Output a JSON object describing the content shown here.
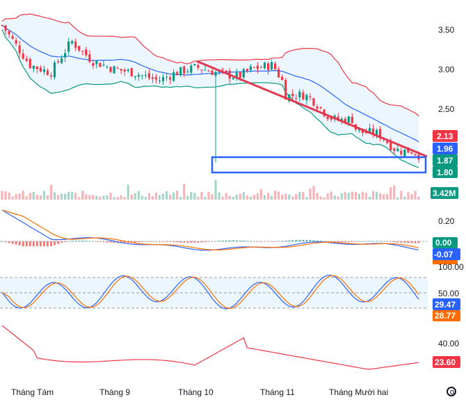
{
  "chart_data": {
    "type": "candlestick-with-indicators",
    "x_labels": [
      "Tháng Tám",
      "Tháng 9",
      "Tháng 10",
      "Tháng 11",
      "Tháng Mười hai"
    ],
    "price_axis": {
      "ticks": [
        "3.50",
        "3.00",
        "2.50"
      ],
      "range": [
        1.75,
        3.75
      ]
    },
    "price_badges": [
      {
        "value": "2.13",
        "color": "#f23645"
      },
      {
        "value": "1.96",
        "color": "#2962ff"
      },
      {
        "value": "1.87",
        "color": "#089981"
      },
      {
        "value": "1.80",
        "color": "#089981"
      }
    ],
    "volume": {
      "badge": "3.42M",
      "badge_color": "#089981"
    },
    "macd": {
      "ticks": [
        "0.20",
        "0.00"
      ],
      "badges": [
        {
          "value": "0.00",
          "color": "#089981"
        },
        {
          "value": "-0.07",
          "color": "#2962ff"
        },
        {
          "value": "",
          "color": "#ff6d00"
        }
      ]
    },
    "stochastic": {
      "ticks": [
        "100.00",
        "50.00"
      ],
      "badges": [
        {
          "value": "29.47",
          "color": "#2962ff"
        },
        {
          "value": "28.77",
          "color": "#ff6d00"
        }
      ]
    },
    "rsi_like": {
      "ticks": [
        "40.00"
      ],
      "badges": [
        {
          "value": "23.60",
          "color": "#f23645"
        }
      ]
    },
    "colors": {
      "up": "#089981",
      "down": "#f23645",
      "bb_upper": "#f23645",
      "bb_lower": "#089981",
      "bb_basis": "#2962ff",
      "bb_fill": "#e3f2fd",
      "trendline": "#e0394f",
      "box": "#2962ff"
    }
  }
}
